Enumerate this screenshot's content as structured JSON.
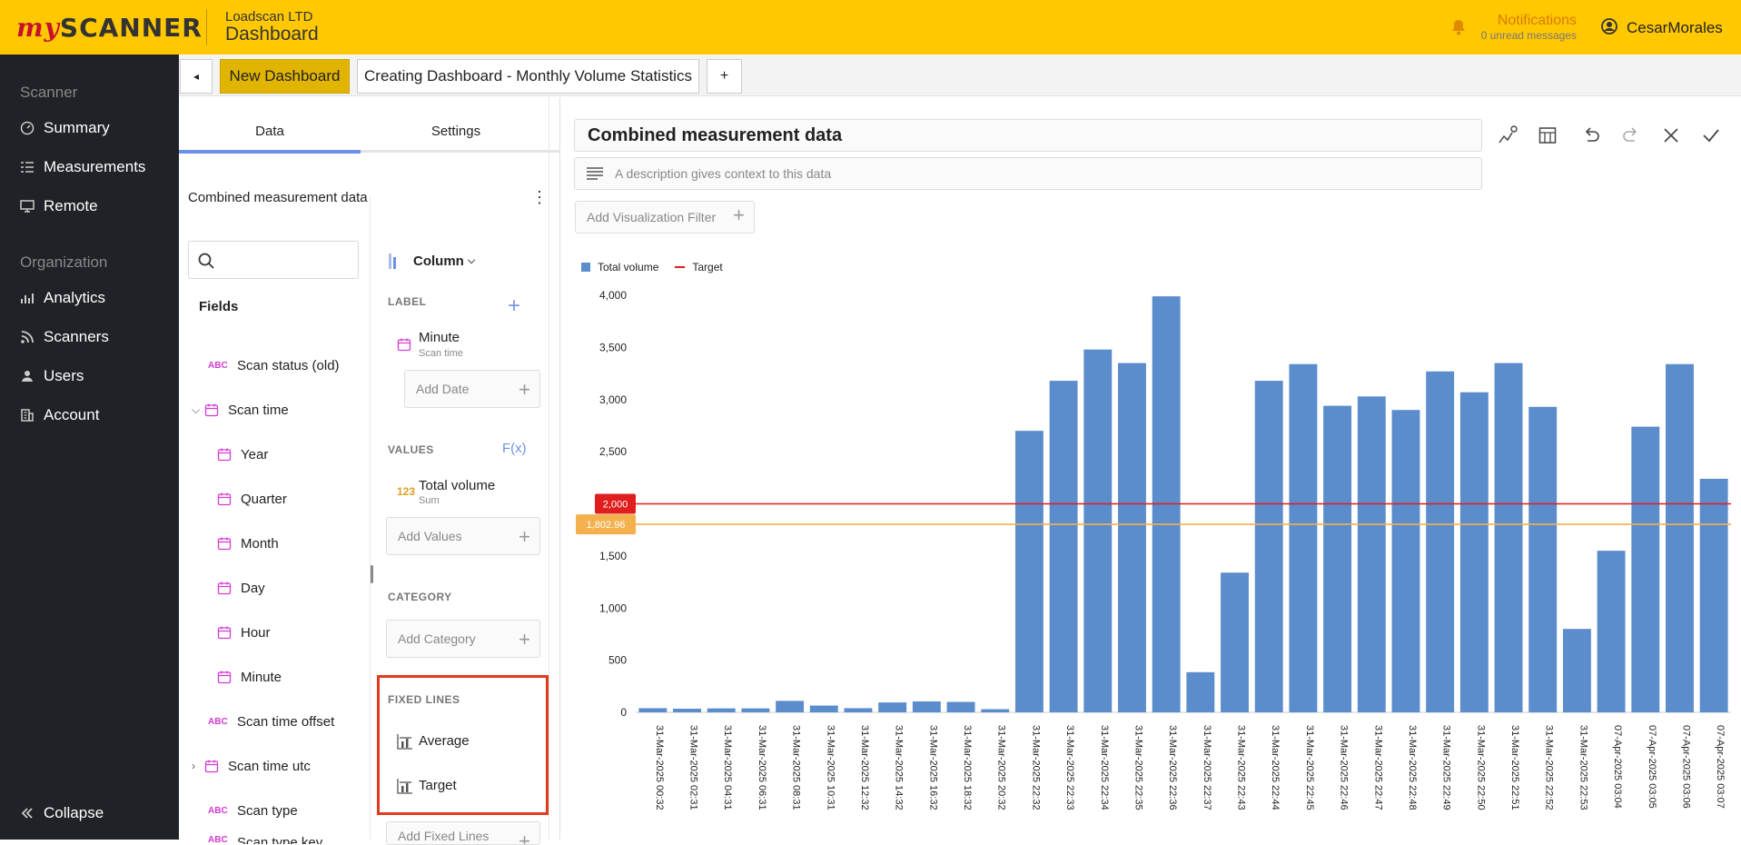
{
  "header": {
    "logo_my": "my",
    "logo_scanner": "SCANNER",
    "company": "Loadscan LTD",
    "title": "Dashboard",
    "notifications_label": "Notifications",
    "notifications_sub": "0 unread messages",
    "user": "CesarMorales"
  },
  "sidebar": {
    "section_scanner": "Scanner",
    "section_org": "Organization",
    "items": [
      {
        "label": "Summary",
        "icon": "dashboard-icon"
      },
      {
        "label": "Measurements",
        "icon": "list-icon"
      },
      {
        "label": "Remote",
        "icon": "monitor-icon"
      },
      {
        "label": "Analytics",
        "icon": "analytics-icon"
      },
      {
        "label": "Scanners",
        "icon": "rss-icon"
      },
      {
        "label": "Users",
        "icon": "users-icon"
      },
      {
        "label": "Account",
        "icon": "building-icon"
      }
    ],
    "collapse": "Collapse"
  },
  "tabs": {
    "back": "◂",
    "new_dashboard": "New Dashboard",
    "current": "Creating Dashboard - Monthly Volume Statistics",
    "add": "+"
  },
  "panel": {
    "tab_data": "Data",
    "tab_settings": "Settings",
    "dataset_name": "Combined measurement data",
    "kebab": "⋮",
    "fields_label": "Fields",
    "fields": [
      {
        "label": "Scan status (old)",
        "type": "ABC"
      },
      {
        "label": "Scan time",
        "type": "date",
        "expanded": true
      },
      {
        "label": "Year",
        "type": "date"
      },
      {
        "label": "Quarter",
        "type": "date"
      },
      {
        "label": "Month",
        "type": "date"
      },
      {
        "label": "Day",
        "type": "date"
      },
      {
        "label": "Hour",
        "type": "date"
      },
      {
        "label": "Minute",
        "type": "date"
      },
      {
        "label": "Scan time offset",
        "type": "ABC"
      },
      {
        "label": "Scan time utc",
        "type": "date"
      },
      {
        "label": "Scan type",
        "type": "ABC"
      },
      {
        "label": "Scan type key",
        "type": "ABC"
      }
    ],
    "column_type": "Column",
    "label_section": "LABEL",
    "label_field": "Minute",
    "label_field_sub": "Scan time",
    "add_date": "Add Date",
    "values_section": "VALUES",
    "fx": "F(x)",
    "num_tag": "123",
    "value_field": "Total volume",
    "value_field_sub": "Sum",
    "add_values": "Add Values",
    "category_section": "CATEGORY",
    "add_category": "Add Category",
    "fixed_section": "FIXED LINES",
    "fixed_lines": [
      "Average",
      "Target"
    ],
    "add_fixed": "Add Fixed Lines"
  },
  "editor": {
    "title": "Combined measurement data",
    "description_placeholder": "A description gives context to this data",
    "viz_filter": "Add Visualization Filter"
  },
  "chart_data": {
    "type": "bar",
    "legend": [
      "Total volume",
      "Target"
    ],
    "legend_position": "top-left",
    "ylim": [
      0,
      4000
    ],
    "yticks": [
      "0",
      "500",
      "1,000",
      "1,500",
      "2,000",
      "2,500",
      "3,000",
      "3,500",
      "4,000"
    ],
    "bar_color": "#5b8ccc",
    "categories": [
      "31-Mar-2025 00:32",
      "31-Mar-2025 02:31",
      "31-Mar-2025 04:31",
      "31-Mar-2025 06:31",
      "31-Mar-2025 08:31",
      "31-Mar-2025 10:31",
      "31-Mar-2025 12:32",
      "31-Mar-2025 14:32",
      "31-Mar-2025 16:32",
      "31-Mar-2025 18:32",
      "31-Mar-2025 20:32",
      "31-Mar-2025 22:32",
      "31-Mar-2025 22:33",
      "31-Mar-2025 22:34",
      "31-Mar-2025 22:35",
      "31-Mar-2025 22:36",
      "31-Mar-2025 22:37",
      "31-Mar-2025 22:43",
      "31-Mar-2025 22:44",
      "31-Mar-2025 22:45",
      "31-Mar-2025 22:46",
      "31-Mar-2025 22:47",
      "31-Mar-2025 22:48",
      "31-Mar-2025 22:49",
      "31-Mar-2025 22:50",
      "31-Mar-2025 22:51",
      "31-Mar-2025 22:52",
      "31-Mar-2025 22:53",
      "07-Apr-2025 03:04",
      "07-Apr-2025 03:05",
      "07-Apr-2025 03:06",
      "07-Apr-2025 03:07"
    ],
    "values": [
      40,
      35,
      38,
      38,
      110,
      65,
      40,
      95,
      105,
      100,
      30,
      2700,
      3180,
      3480,
      3350,
      3990,
      385,
      1340,
      3180,
      3340,
      2940,
      3030,
      2900,
      3270,
      3070,
      3350,
      2930,
      800,
      1550,
      2740,
      3340,
      2240
    ],
    "fixed_lines": [
      {
        "name": "Target",
        "value": 2000,
        "label": "2,000",
        "color": "#e01e1e"
      },
      {
        "name": "Average",
        "value": 1802.96,
        "label": "1,802.96",
        "color": "#f2b14d"
      }
    ]
  }
}
